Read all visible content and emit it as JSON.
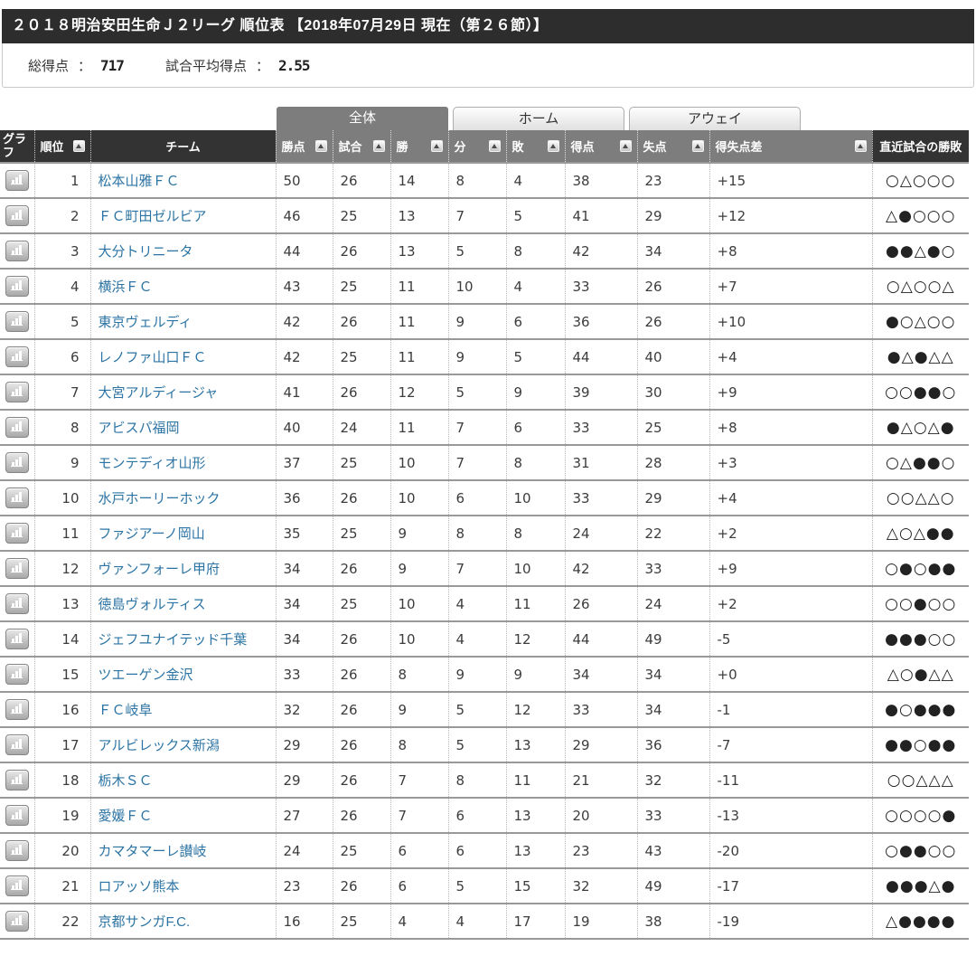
{
  "title": "２０１８明治安田生命Ｊ２リーグ 順位表 【2018年07月29日 現在（第２６節）】",
  "summary": {
    "total_goals_label": "総得点",
    "total_goals_value": "717",
    "avg_goals_label": "試合平均得点",
    "avg_goals_value": "2.55",
    "colon": "："
  },
  "tabs": [
    {
      "label": "全体",
      "active": true
    },
    {
      "label": "ホーム",
      "active": false
    },
    {
      "label": "アウェイ",
      "active": false
    }
  ],
  "colors": {
    "title_bar": "#2d2d2d",
    "header_dark": "#333333",
    "header_gray": "#7d7d7d",
    "team_link": "#2c74a4",
    "row_border": "#999999"
  },
  "icons": {
    "graph_button": "bar-chart-icon",
    "sort_button": "sort-up-arrow-icon"
  },
  "table": {
    "columns": [
      {
        "key": "graph",
        "label": "グラフ",
        "sortable": false,
        "dark": true
      },
      {
        "key": "rank",
        "label": "順位",
        "sortable": true,
        "dark": true
      },
      {
        "key": "team",
        "label": "チーム",
        "sortable": false,
        "dark": true
      },
      {
        "key": "points",
        "label": "勝点",
        "sortable": true,
        "dark": false
      },
      {
        "key": "played",
        "label": "試合",
        "sortable": true,
        "dark": false
      },
      {
        "key": "won",
        "label": "勝",
        "sortable": true,
        "dark": false
      },
      {
        "key": "drawn",
        "label": "分",
        "sortable": true,
        "dark": false
      },
      {
        "key": "lost",
        "label": "敗",
        "sortable": true,
        "dark": false
      },
      {
        "key": "gf",
        "label": "得点",
        "sortable": true,
        "dark": false
      },
      {
        "key": "ga",
        "label": "失点",
        "sortable": true,
        "dark": false
      },
      {
        "key": "gd",
        "label": "得失点差",
        "sortable": true,
        "dark": false
      },
      {
        "key": "recent",
        "label": "直近試合の勝敗",
        "sortable": false,
        "dark": true
      }
    ],
    "rows": [
      {
        "rank": "1",
        "team": "松本山雅ＦＣ",
        "points": "50",
        "played": "26",
        "won": "14",
        "drawn": "8",
        "lost": "4",
        "gf": "38",
        "ga": "23",
        "gd": "+15",
        "recent": "○△○○○"
      },
      {
        "rank": "2",
        "team": "ＦＣ町田ゼルビア",
        "points": "46",
        "played": "25",
        "won": "13",
        "drawn": "7",
        "lost": "5",
        "gf": "41",
        "ga": "29",
        "gd": "+12",
        "recent": "△●○○○"
      },
      {
        "rank": "3",
        "team": "大分トリニータ",
        "points": "44",
        "played": "26",
        "won": "13",
        "drawn": "5",
        "lost": "8",
        "gf": "42",
        "ga": "34",
        "gd": "+8",
        "recent": "●●△●○"
      },
      {
        "rank": "4",
        "team": "横浜ＦＣ",
        "points": "43",
        "played": "25",
        "won": "11",
        "drawn": "10",
        "lost": "4",
        "gf": "33",
        "ga": "26",
        "gd": "+7",
        "recent": "○△○○△"
      },
      {
        "rank": "5",
        "team": "東京ヴェルディ",
        "points": "42",
        "played": "26",
        "won": "11",
        "drawn": "9",
        "lost": "6",
        "gf": "36",
        "ga": "26",
        "gd": "+10",
        "recent": "●○△○○"
      },
      {
        "rank": "6",
        "team": "レノファ山口ＦＣ",
        "points": "42",
        "played": "25",
        "won": "11",
        "drawn": "9",
        "lost": "5",
        "gf": "44",
        "ga": "40",
        "gd": "+4",
        "recent": "●△●△△"
      },
      {
        "rank": "7",
        "team": "大宮アルディージャ",
        "points": "41",
        "played": "26",
        "won": "12",
        "drawn": "5",
        "lost": "9",
        "gf": "39",
        "ga": "30",
        "gd": "+9",
        "recent": "○○●●○"
      },
      {
        "rank": "8",
        "team": "アビスパ福岡",
        "points": "40",
        "played": "24",
        "won": "11",
        "drawn": "7",
        "lost": "6",
        "gf": "33",
        "ga": "25",
        "gd": "+8",
        "recent": "●△○△●"
      },
      {
        "rank": "9",
        "team": "モンテディオ山形",
        "points": "37",
        "played": "25",
        "won": "10",
        "drawn": "7",
        "lost": "8",
        "gf": "31",
        "ga": "28",
        "gd": "+3",
        "recent": "○△●●○"
      },
      {
        "rank": "10",
        "team": "水戸ホーリーホック",
        "points": "36",
        "played": "26",
        "won": "10",
        "drawn": "6",
        "lost": "10",
        "gf": "33",
        "ga": "29",
        "gd": "+4",
        "recent": "○○△△○"
      },
      {
        "rank": "11",
        "team": "ファジアーノ岡山",
        "points": "35",
        "played": "25",
        "won": "9",
        "drawn": "8",
        "lost": "8",
        "gf": "24",
        "ga": "22",
        "gd": "+2",
        "recent": "△○△●●"
      },
      {
        "rank": "12",
        "team": "ヴァンフォーレ甲府",
        "points": "34",
        "played": "26",
        "won": "9",
        "drawn": "7",
        "lost": "10",
        "gf": "42",
        "ga": "33",
        "gd": "+9",
        "recent": "○●○●●"
      },
      {
        "rank": "13",
        "team": "徳島ヴォルティス",
        "points": "34",
        "played": "25",
        "won": "10",
        "drawn": "4",
        "lost": "11",
        "gf": "26",
        "ga": "24",
        "gd": "+2",
        "recent": "○○●○○"
      },
      {
        "rank": "14",
        "team": "ジェフユナイテッド千葉",
        "points": "34",
        "played": "26",
        "won": "10",
        "drawn": "4",
        "lost": "12",
        "gf": "44",
        "ga": "49",
        "gd": "-5",
        "recent": "●●●○○"
      },
      {
        "rank": "15",
        "team": "ツエーゲン金沢",
        "points": "33",
        "played": "26",
        "won": "8",
        "drawn": "9",
        "lost": "9",
        "gf": "34",
        "ga": "34",
        "gd": "+0",
        "recent": "△○●△△"
      },
      {
        "rank": "16",
        "team": "ＦＣ岐阜",
        "points": "32",
        "played": "26",
        "won": "9",
        "drawn": "5",
        "lost": "12",
        "gf": "33",
        "ga": "34",
        "gd": "-1",
        "recent": "●○●●●"
      },
      {
        "rank": "17",
        "team": "アルビレックス新潟",
        "points": "29",
        "played": "26",
        "won": "8",
        "drawn": "5",
        "lost": "13",
        "gf": "29",
        "ga": "36",
        "gd": "-7",
        "recent": "●●○●●"
      },
      {
        "rank": "18",
        "team": "栃木ＳＣ",
        "points": "29",
        "played": "26",
        "won": "7",
        "drawn": "8",
        "lost": "11",
        "gf": "21",
        "ga": "32",
        "gd": "-11",
        "recent": "○○△△△"
      },
      {
        "rank": "19",
        "team": "愛媛ＦＣ",
        "points": "27",
        "played": "26",
        "won": "7",
        "drawn": "6",
        "lost": "13",
        "gf": "20",
        "ga": "33",
        "gd": "-13",
        "recent": "○○○○●"
      },
      {
        "rank": "20",
        "team": "カマタマーレ讃岐",
        "points": "24",
        "played": "25",
        "won": "6",
        "drawn": "6",
        "lost": "13",
        "gf": "23",
        "ga": "43",
        "gd": "-20",
        "recent": "○●●○○"
      },
      {
        "rank": "21",
        "team": "ロアッソ熊本",
        "points": "23",
        "played": "26",
        "won": "6",
        "drawn": "5",
        "lost": "15",
        "gf": "32",
        "ga": "49",
        "gd": "-17",
        "recent": "●●●△●"
      },
      {
        "rank": "22",
        "team": "京都サンガF.C.",
        "points": "16",
        "played": "25",
        "won": "4",
        "drawn": "4",
        "lost": "17",
        "gf": "19",
        "ga": "38",
        "gd": "-19",
        "recent": "△●●●●"
      }
    ]
  }
}
